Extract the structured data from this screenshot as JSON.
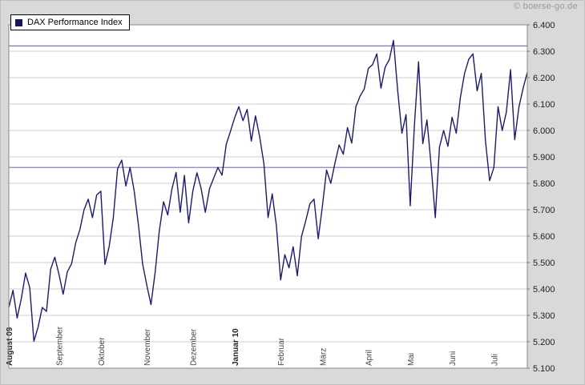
{
  "watermark": "© boerse-go.de",
  "legend": {
    "label": "DAX Performance Index"
  },
  "chart_data": {
    "type": "line",
    "title": "DAX Performance Index",
    "ylabel": "",
    "xlabel": "",
    "ylim": [
      5100,
      6400
    ],
    "grid": true,
    "legend_position": "top-left",
    "line_color": "#1b1b6f",
    "plot_background": "#ffffff",
    "grid_color": "#cccccc",
    "reference_line_color": "#7575c8",
    "reference_lines": [
      {
        "value": 6320
      },
      {
        "value": 5860
      }
    ],
    "y_ticks": [
      {
        "value": 6400,
        "label": "6.400"
      },
      {
        "value": 6300,
        "label": "6.300"
      },
      {
        "value": 6200,
        "label": "6.200"
      },
      {
        "value": 6100,
        "label": "6.100"
      },
      {
        "value": 6000,
        "label": "6.000"
      },
      {
        "value": 5900,
        "label": "5.900"
      },
      {
        "value": 5800,
        "label": "5.800"
      },
      {
        "value": 5700,
        "label": "5.700"
      },
      {
        "value": 5600,
        "label": "5.600"
      },
      {
        "value": 5500,
        "label": "5.500"
      },
      {
        "value": 5400,
        "label": "5.400"
      },
      {
        "value": 5300,
        "label": "5.300"
      },
      {
        "value": 5200,
        "label": "5.200"
      },
      {
        "value": 5100,
        "label": "5.100"
      }
    ],
    "months": [
      {
        "label": "August 09",
        "bold": true,
        "values": [
          5330,
          5395,
          5290,
          5365,
          5460,
          5405,
          5202,
          5255,
          5330,
          5315,
          5475,
          5520
        ]
      },
      {
        "label": "September",
        "bold": false,
        "values": [
          5455,
          5380,
          5465,
          5495,
          5575,
          5625,
          5700,
          5740,
          5670,
          5755
        ]
      },
      {
        "label": "Oktober",
        "bold": false,
        "values": [
          5770,
          5493,
          5560,
          5670,
          5855,
          5888,
          5790,
          5860,
          5770,
          5641,
          5494
        ]
      },
      {
        "label": "November",
        "bold": false,
        "values": [
          5414,
          5341,
          5463,
          5620,
          5730,
          5680,
          5778,
          5841,
          5690,
          5830,
          5650
        ]
      },
      {
        "label": "Dezember",
        "bold": false,
        "values": [
          5770,
          5840,
          5780,
          5690,
          5780,
          5820,
          5860,
          5831,
          5947,
          5996
        ]
      },
      {
        "label": "Januar 10",
        "bold": true,
        "values": [
          6048,
          6090,
          6037,
          6080,
          5960,
          6055,
          5975,
          5875,
          5670,
          5760,
          5640
        ]
      },
      {
        "label": "Februar",
        "bold": false,
        "values": [
          5434,
          5530,
          5480,
          5560,
          5450,
          5598,
          5658,
          5722,
          5740,
          5590
        ]
      },
      {
        "label": "März",
        "bold": false,
        "values": [
          5713,
          5850,
          5800,
          5877,
          5945,
          5910,
          6011,
          5952,
          6090,
          6130,
          6157
        ]
      },
      {
        "label": "April",
        "bold": false,
        "values": [
          6235,
          6249,
          6290,
          6160,
          6240,
          6268,
          6341,
          6150,
          5990,
          6060
        ]
      },
      {
        "label": "Mai",
        "bold": false,
        "values": [
          5715,
          6018,
          6260,
          5950,
          6040,
          5867,
          5670,
          5937,
          6000,
          5940
        ]
      },
      {
        "label": "Juni",
        "bold": false,
        "values": [
          6050,
          5990,
          6125,
          6216,
          6270,
          6290,
          6150,
          6216,
          5960,
          5810
        ]
      },
      {
        "label": "Juli",
        "bold": false,
        "values": [
          5860,
          6090,
          6000,
          6070,
          6230,
          5965,
          6090,
          6160,
          6220
        ]
      }
    ]
  }
}
